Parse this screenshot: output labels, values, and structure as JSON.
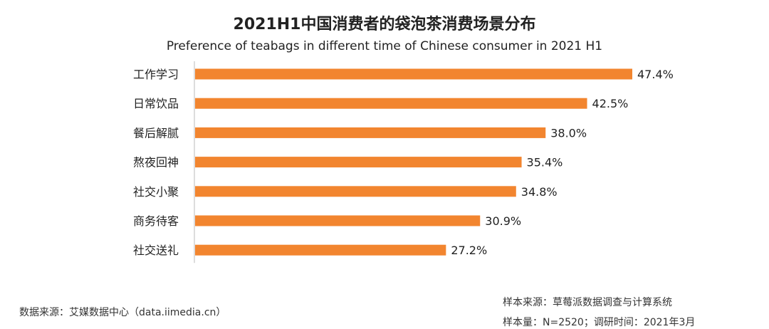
{
  "chart_data": {
    "type": "bar",
    "orientation": "horizontal",
    "title": "2021H1中国消费者的袋泡茶消费场景分布",
    "subtitle": "Preference of teabags in different time of Chinese consumer in 2021 H1",
    "categories": [
      "工作学习",
      "日常饮品",
      "餐后解腻",
      "熬夜回神",
      "社交小聚",
      "商务待客",
      "社交送礼"
    ],
    "values": [
      47.4,
      42.5,
      38.0,
      35.4,
      34.8,
      30.9,
      27.2
    ],
    "value_labels": [
      "47.4%",
      "42.5%",
      "38.0%",
      "35.4%",
      "34.8%",
      "30.9%",
      "27.2%"
    ],
    "unit": "%",
    "xlim": [
      0,
      47.4
    ],
    "grid": false,
    "legend": "none",
    "bar_color": "#F2852F"
  },
  "footer": {
    "source": "数据来源：艾媒数据中心（data.iimedia.cn）",
    "sample_source": "样本来源：草莓派数据调查与计算系统",
    "sample_info": "样本量：N=2520；调研时间：2021年3月"
  }
}
